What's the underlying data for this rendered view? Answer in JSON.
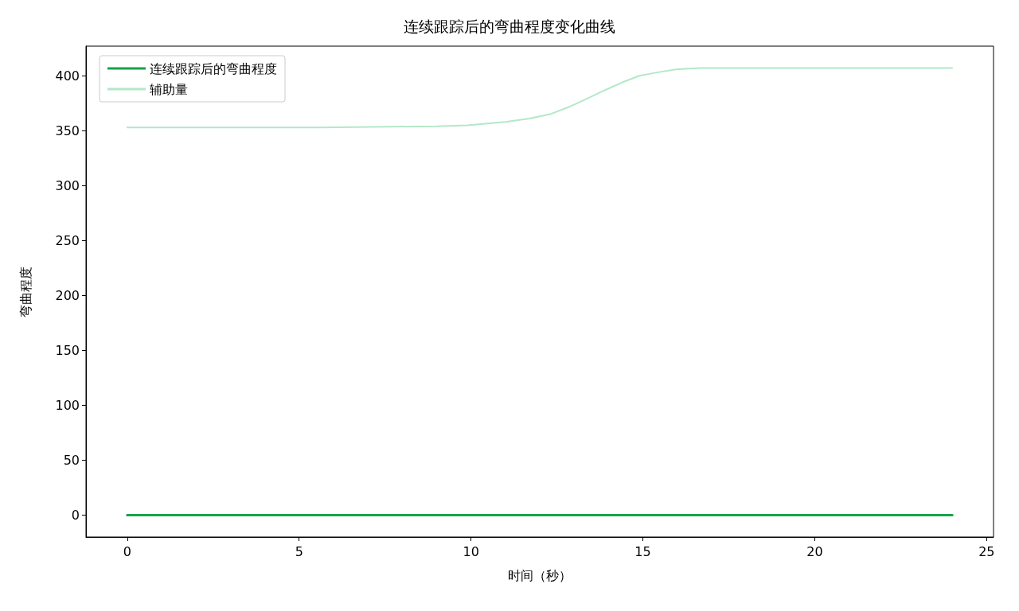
{
  "chart_data": {
    "type": "line",
    "title": "连续跟踪后的弯曲程度变化曲线",
    "xlabel": "时间（秒）",
    "ylabel": "弯曲程度",
    "series": [
      {
        "name": "连续跟踪后的弯曲程度",
        "color": "#16a34a",
        "x": [
          0,
          24
        ],
        "values": [
          0,
          0
        ]
      },
      {
        "name": "辅助量",
        "color": "#b3e8c8",
        "x": [
          0,
          5.6,
          9,
          9.9,
          11,
          11.7,
          12.3,
          12.8,
          13.3,
          13.9,
          14.4,
          14.9,
          15.4,
          16,
          16.7,
          24
        ],
        "values": [
          353,
          353,
          354,
          355,
          358,
          361,
          365,
          371,
          378,
          387,
          394,
          400,
          403,
          406,
          407,
          407
        ]
      }
    ],
    "xlim": [
      -1.2,
      25.2
    ],
    "xticks": [
      0,
      5,
      10,
      15,
      20,
      25
    ],
    "ylim": [
      -20,
      427
    ],
    "yticks": [
      0,
      50,
      100,
      150,
      200,
      250,
      300,
      350,
      400
    ],
    "grid": false,
    "legend": "top left",
    "marker": "none",
    "line_style": "solid"
  }
}
